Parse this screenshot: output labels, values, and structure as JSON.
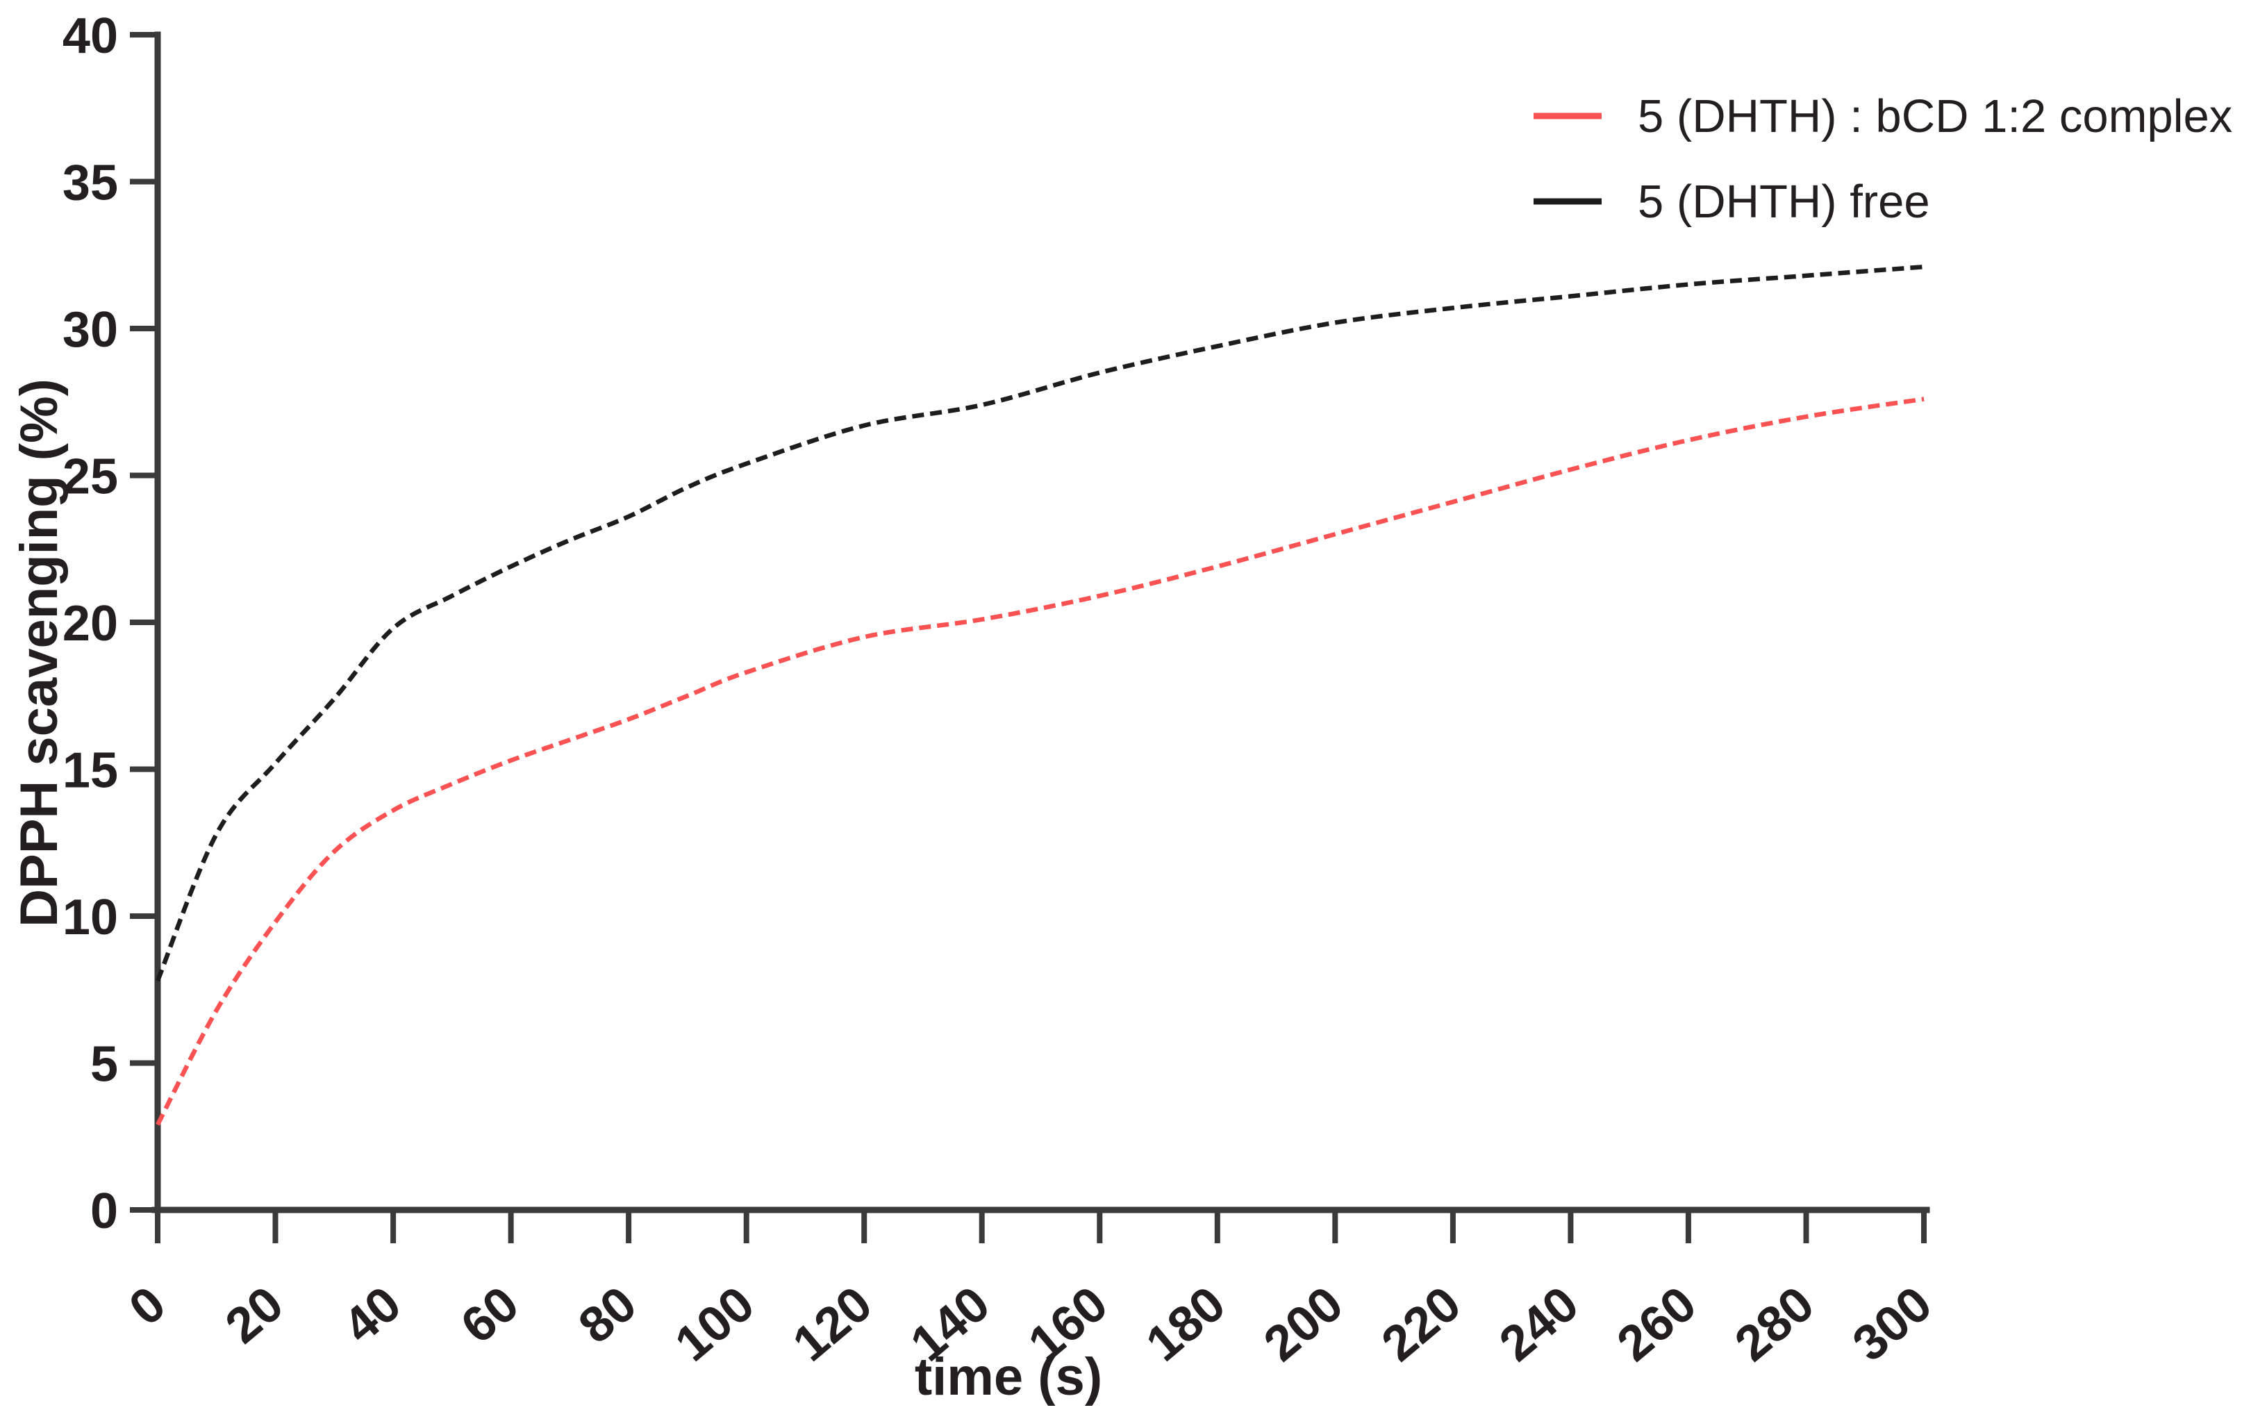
{
  "chart_data": {
    "type": "line",
    "title": "",
    "xlabel": "time (s)",
    "ylabel": "DPPH scavenging (%)",
    "xlim": [
      0,
      300
    ],
    "ylim": [
      0,
      40
    ],
    "x_ticks": [
      0,
      20,
      40,
      60,
      80,
      100,
      120,
      140,
      160,
      180,
      200,
      220,
      240,
      260,
      280,
      300
    ],
    "y_ticks": [
      0,
      5,
      10,
      15,
      20,
      25,
      30,
      35,
      40
    ],
    "grid": false,
    "line_style": "dashed",
    "legend_position": "top-right",
    "x": [
      0,
      10,
      20,
      30,
      40,
      50,
      60,
      70,
      80,
      90,
      100,
      120,
      140,
      160,
      180,
      200,
      220,
      240,
      260,
      280,
      300
    ],
    "series": [
      {
        "name": "5 (DHTH) : bCD 1:2 complex",
        "color": "#fa5252",
        "values": [
          2.9,
          6.8,
          9.8,
          12.2,
          13.6,
          14.5,
          15.3,
          16.0,
          16.7,
          17.5,
          18.3,
          19.5,
          20.1,
          20.9,
          21.9,
          23.0,
          24.1,
          25.2,
          26.2,
          27.0,
          27.6
        ]
      },
      {
        "name": "5 (DHTH) free",
        "color": "#1d1d1d",
        "values": [
          7.8,
          12.8,
          15.2,
          17.4,
          19.8,
          20.9,
          21.9,
          22.8,
          23.6,
          24.6,
          25.4,
          26.7,
          27.4,
          28.5,
          29.4,
          30.2,
          30.7,
          31.1,
          31.5,
          31.8,
          32.1
        ]
      }
    ]
  },
  "colors": {
    "axis": "#3a3a3a",
    "text": "#231f20",
    "background": "#ffffff"
  }
}
